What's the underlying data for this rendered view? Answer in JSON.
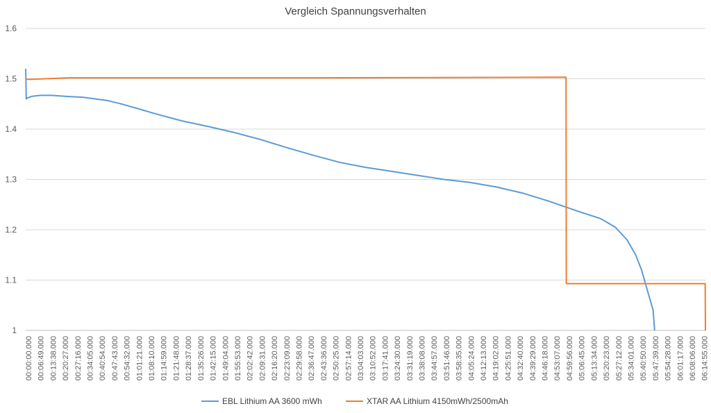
{
  "chart_data": {
    "type": "line",
    "title": "Vergleich Spannungsverhalten",
    "xlabel": "",
    "ylabel": "",
    "ylim": [
      1.0,
      1.6
    ],
    "yticks": [
      "1.6",
      "1.5",
      "1.4",
      "1.3",
      "1.2",
      "1.1",
      "1"
    ],
    "grid": true,
    "legend_position": "bottom",
    "x_range_seconds": [
      0,
      23400
    ],
    "xticks": [
      "00:00:00.000",
      "00:06:49.000",
      "00:13:38.000",
      "00:20:27.000",
      "00:27:16.000",
      "00:34:05.000",
      "00:40:54.000",
      "00:47:43.000",
      "00:54:32.000",
      "01:01:21.000",
      "01:08:10.000",
      "01:14:59.000",
      "01:21:48.000",
      "01:28:37.000",
      "01:35:26.000",
      "01:42:15.000",
      "01:49:04.000",
      "01:55:53.000",
      "02:02:42.000",
      "02:09:31.000",
      "02:16:20.000",
      "02:23:09.000",
      "02:29:58.000",
      "02:36:47.000",
      "02:43:36.000",
      "02:50:25.000",
      "02:57:14.000",
      "03:04:03.000",
      "03:10:52.000",
      "03:17:41.000",
      "03:24:30.000",
      "03:31:19.000",
      "03:38:08.000",
      "03:44:57.000",
      "03:51:46.000",
      "03:58:35.000",
      "04:05:24.000",
      "04:12:13.000",
      "04:19:02.000",
      "04:25:51.000",
      "04:32:40.000",
      "04:39:29.000",
      "04:46:18.000",
      "04:53:07.000",
      "04:59:56.000",
      "05:06:45.000",
      "05:13:34.000",
      "05:20:23.000",
      "05:27:12.000",
      "05:34:01.000",
      "05:40:50.000",
      "05:47:39.000",
      "05:54:28.000",
      "06:01:17.000",
      "06:08:06.000",
      "06:14:55.000"
    ],
    "series": [
      {
        "name": "EBL Lithium AA 3600 mWh",
        "color": "#5B9BD5",
        "x": [
          0,
          20,
          60,
          200,
          500,
          900,
          1400,
          2000,
          2800,
          3300,
          3900,
          4500,
          5400,
          6300,
          7200,
          8100,
          9000,
          9900,
          10800,
          11700,
          12600,
          13500,
          14400,
          15300,
          16200,
          17100,
          18000,
          18500,
          19000,
          19800,
          20300,
          20700,
          21000,
          21200,
          21400,
          21500,
          21600,
          21650
        ],
        "y": [
          1.52,
          1.46,
          1.462,
          1.465,
          1.467,
          1.467,
          1.465,
          1.463,
          1.457,
          1.45,
          1.44,
          1.43,
          1.416,
          1.405,
          1.393,
          1.379,
          1.363,
          1.348,
          1.334,
          1.324,
          1.316,
          1.308,
          1.3,
          1.294,
          1.285,
          1.273,
          1.257,
          1.247,
          1.237,
          1.222,
          1.205,
          1.18,
          1.15,
          1.12,
          1.08,
          1.06,
          1.04,
          1.0
        ]
      },
      {
        "name": "XTAR AA Lithium 4150mWh/2500mAh",
        "color": "#ED7D31",
        "x": [
          0,
          200,
          1500,
          3000,
          10000,
          18600,
          18610,
          23390,
          23400
        ],
        "y": [
          1.499,
          1.499,
          1.502,
          1.502,
          1.502,
          1.503,
          1.093,
          1.093,
          1.0
        ]
      }
    ]
  }
}
